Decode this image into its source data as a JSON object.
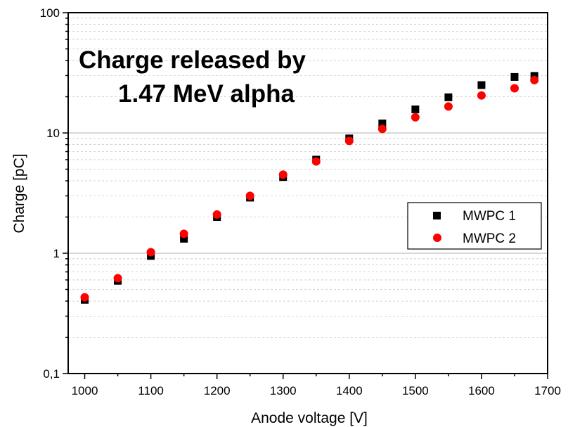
{
  "chart_data": {
    "type": "scatter",
    "title_lines": [
      "Charge released by",
      "1.47 MeV alpha"
    ],
    "xlabel": "Anode voltage [V]",
    "ylabel": "Charge [pC]",
    "xlim": [
      975,
      1700
    ],
    "ylim": [
      0.1,
      100
    ],
    "yscale": "log",
    "x_ticks": [
      1000,
      1100,
      1200,
      1300,
      1400,
      1500,
      1600,
      1700
    ],
    "x_tick_labels": [
      "1000",
      "1100",
      "1200",
      "1300",
      "1400",
      "1500",
      "1600",
      "1700"
    ],
    "y_ticks": [
      0.1,
      1,
      10,
      100
    ],
    "y_tick_labels": [
      "0,1",
      "1",
      "10",
      "100"
    ],
    "grid": true,
    "legend_position": "lower-right",
    "series": [
      {
        "name": "MWPC 1",
        "marker": "square",
        "color": "#000000",
        "x": [
          1000,
          1050,
          1100,
          1150,
          1200,
          1250,
          1300,
          1350,
          1400,
          1450,
          1500,
          1550,
          1600,
          1650,
          1680
        ],
        "y": [
          0.41,
          0.59,
          0.95,
          1.32,
          2.0,
          2.9,
          4.3,
          6.0,
          9.0,
          12.0,
          15.7,
          19.8,
          25.0,
          29.2,
          29.8
        ]
      },
      {
        "name": "MWPC 2",
        "marker": "circle",
        "color": "#ff0000",
        "x": [
          1000,
          1050,
          1100,
          1150,
          1200,
          1250,
          1300,
          1350,
          1400,
          1450,
          1500,
          1550,
          1600,
          1650,
          1680
        ],
        "y": [
          0.43,
          0.62,
          1.02,
          1.45,
          2.1,
          3.0,
          4.5,
          5.8,
          8.6,
          10.8,
          13.5,
          16.6,
          20.5,
          23.5,
          27.5
        ]
      }
    ]
  }
}
